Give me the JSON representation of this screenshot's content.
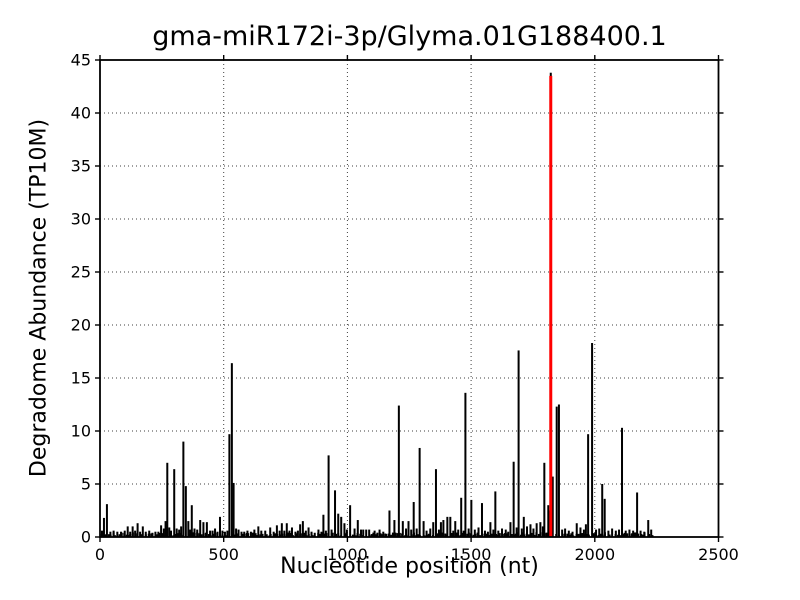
{
  "chart_data": {
    "type": "bar",
    "title": "gma-miR172i-3p/Glyma.01G188400.1",
    "xlabel": "Nucleotide position (nt)",
    "ylabel": "Degradome Abundance (TP10M)",
    "xlim": [
      0,
      2500
    ],
    "ylim": [
      0,
      45
    ],
    "xticks": [
      0,
      500,
      1000,
      1500,
      2000,
      2500
    ],
    "yticks": [
      0,
      5,
      10,
      15,
      20,
      25,
      30,
      35,
      40,
      45
    ],
    "grid": {
      "on": true,
      "style": "dotted",
      "color": "#000000"
    },
    "colors": {
      "bar": "#000000",
      "highlight": "#ff0000",
      "background": "#ffffff",
      "axis": "#000000"
    },
    "legend": "none",
    "highlight": {
      "x": 1822,
      "value": 43.5,
      "black_cap_value": 43.8,
      "meaning": "miRNA cleavage site peak"
    },
    "bars": [
      [
        8,
        0.6
      ],
      [
        16,
        1.8
      ],
      [
        28,
        3.1
      ],
      [
        42,
        0.5
      ],
      [
        55,
        0.6
      ],
      [
        70,
        0.5
      ],
      [
        85,
        0.5
      ],
      [
        100,
        0.6
      ],
      [
        112,
        1.0
      ],
      [
        122,
        0.5
      ],
      [
        132,
        1.0
      ],
      [
        142,
        0.6
      ],
      [
        152,
        1.3
      ],
      [
        162,
        0.5
      ],
      [
        173,
        1.0
      ],
      [
        185,
        0.5
      ],
      [
        199,
        0.6
      ],
      [
        212,
        0.4
      ],
      [
        224,
        0.5
      ],
      [
        236,
        0.5
      ],
      [
        247,
        1.1
      ],
      [
        258,
        0.8
      ],
      [
        265,
        1.5
      ],
      [
        272,
        7.0
      ],
      [
        280,
        0.9
      ],
      [
        287,
        0.6
      ],
      [
        300,
        6.4
      ],
      [
        310,
        0.8
      ],
      [
        320,
        0.7
      ],
      [
        328,
        1.0
      ],
      [
        337,
        9.0
      ],
      [
        347,
        4.8
      ],
      [
        357,
        1.5
      ],
      [
        364,
        0.7
      ],
      [
        371,
        3.0
      ],
      [
        382,
        0.8
      ],
      [
        393,
        0.7
      ],
      [
        405,
        1.6
      ],
      [
        418,
        1.4
      ],
      [
        432,
        1.4
      ],
      [
        445,
        0.6
      ],
      [
        455,
        0.6
      ],
      [
        465,
        0.8
      ],
      [
        475,
        0.5
      ],
      [
        485,
        1.9
      ],
      [
        495,
        0.6
      ],
      [
        505,
        0.5
      ],
      [
        515,
        0.6
      ],
      [
        523,
        9.7
      ],
      [
        533,
        16.4
      ],
      [
        540,
        5.1
      ],
      [
        550,
        0.8
      ],
      [
        560,
        0.7
      ],
      [
        572,
        0.5
      ],
      [
        583,
        0.5
      ],
      [
        596,
        0.6
      ],
      [
        610,
        0.5
      ],
      [
        624,
        0.7
      ],
      [
        640,
        1.0
      ],
      [
        652,
        0.6
      ],
      [
        668,
        0.6
      ],
      [
        688,
        0.9
      ],
      [
        702,
        0.5
      ],
      [
        715,
        1.1
      ],
      [
        726,
        0.6
      ],
      [
        735,
        1.3
      ],
      [
        745,
        0.6
      ],
      [
        755,
        1.3
      ],
      [
        766,
        0.6
      ],
      [
        776,
        0.9
      ],
      [
        790,
        0.5
      ],
      [
        800,
        0.6
      ],
      [
        809,
        1.2
      ],
      [
        820,
        1.5
      ],
      [
        832,
        0.6
      ],
      [
        843,
        0.9
      ],
      [
        855,
        0.5
      ],
      [
        868,
        0.4
      ],
      [
        883,
        0.7
      ],
      [
        895,
        0.5
      ],
      [
        903,
        2.1
      ],
      [
        913,
        0.6
      ],
      [
        924,
        7.7
      ],
      [
        936,
        0.7
      ],
      [
        950,
        4.4
      ],
      [
        963,
        2.2
      ],
      [
        975,
        1.9
      ],
      [
        988,
        1.3
      ],
      [
        998,
        0.7
      ],
      [
        1011,
        3.0
      ],
      [
        1029,
        0.8
      ],
      [
        1042,
        1.6
      ],
      [
        1055,
        0.7
      ],
      [
        1064,
        0.7
      ],
      [
        1076,
        0.7
      ],
      [
        1088,
        0.7
      ],
      [
        1110,
        0.6
      ],
      [
        1130,
        0.7
      ],
      [
        1145,
        0.5
      ],
      [
        1170,
        2.5
      ],
      [
        1190,
        1.6
      ],
      [
        1208,
        12.4
      ],
      [
        1224,
        1.5
      ],
      [
        1237,
        0.8
      ],
      [
        1247,
        1.5
      ],
      [
        1258,
        0.7
      ],
      [
        1268,
        3.3
      ],
      [
        1280,
        0.8
      ],
      [
        1292,
        8.4
      ],
      [
        1308,
        1.5
      ],
      [
        1320,
        0.6
      ],
      [
        1335,
        0.8
      ],
      [
        1347,
        1.4
      ],
      [
        1358,
        6.4
      ],
      [
        1370,
        0.7
      ],
      [
        1378,
        1.4
      ],
      [
        1388,
        1.6
      ],
      [
        1404,
        1.9
      ],
      [
        1416,
        1.9
      ],
      [
        1428,
        0.6
      ],
      [
        1436,
        1.5
      ],
      [
        1448,
        0.7
      ],
      [
        1460,
        3.7
      ],
      [
        1470,
        0.6
      ],
      [
        1477,
        13.6
      ],
      [
        1490,
        0.8
      ],
      [
        1501,
        3.5
      ],
      [
        1515,
        0.7
      ],
      [
        1530,
        0.9
      ],
      [
        1544,
        3.2
      ],
      [
        1556,
        0.6
      ],
      [
        1568,
        0.5
      ],
      [
        1578,
        1.4
      ],
      [
        1590,
        0.7
      ],
      [
        1598,
        4.3
      ],
      [
        1610,
        0.6
      ],
      [
        1625,
        0.8
      ],
      [
        1640,
        0.7
      ],
      [
        1650,
        0.5
      ],
      [
        1659,
        1.4
      ],
      [
        1672,
        7.1
      ],
      [
        1684,
        0.9
      ],
      [
        1692,
        17.6
      ],
      [
        1705,
        0.8
      ],
      [
        1713,
        1.9
      ],
      [
        1726,
        1.0
      ],
      [
        1740,
        1.2
      ],
      [
        1752,
        0.8
      ],
      [
        1765,
        1.3
      ],
      [
        1780,
        1.4
      ],
      [
        1790,
        1.0
      ],
      [
        1796,
        7.0
      ],
      [
        1812,
        3.0
      ],
      [
        1818,
        2.5
      ],
      [
        1830,
        5.7
      ],
      [
        1846,
        12.3
      ],
      [
        1855,
        12.5
      ],
      [
        1868,
        0.7
      ],
      [
        1880,
        0.8
      ],
      [
        1895,
        0.6
      ],
      [
        1910,
        0.5
      ],
      [
        1927,
        1.3
      ],
      [
        1942,
        0.9
      ],
      [
        1956,
        0.7
      ],
      [
        1964,
        1.2
      ],
      [
        1973,
        9.7
      ],
      [
        1989,
        18.3
      ],
      [
        2005,
        0.7
      ],
      [
        2018,
        0.8
      ],
      [
        2030,
        5.0
      ],
      [
        2040,
        3.6
      ],
      [
        2055,
        0.6
      ],
      [
        2070,
        0.8
      ],
      [
        2085,
        0.6
      ],
      [
        2098,
        0.7
      ],
      [
        2110,
        10.3
      ],
      [
        2125,
        0.6
      ],
      [
        2140,
        0.7
      ],
      [
        2155,
        0.6
      ],
      [
        2171,
        4.2
      ],
      [
        2185,
        0.6
      ],
      [
        2200,
        0.5
      ],
      [
        2216,
        1.6
      ],
      [
        2228,
        0.7
      ]
    ],
    "baseline_noise": {
      "from": 5,
      "to": 2228,
      "step": 9,
      "min": 0.15,
      "max": 0.45,
      "skip_prob": 0.15
    }
  }
}
